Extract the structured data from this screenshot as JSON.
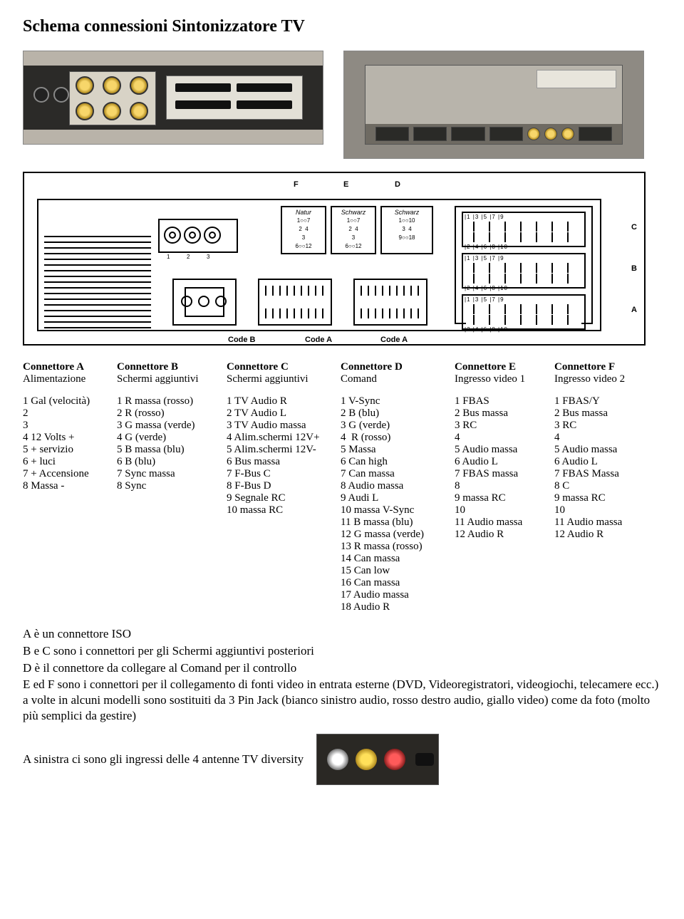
{
  "title": "Schema connessioni Sintonizzatore TV",
  "diagram": {
    "top": {
      "f": "F",
      "e": "E",
      "d": "D"
    },
    "side": {
      "c": "C",
      "b": "B",
      "a": "A"
    },
    "fedbox": {
      "f": {
        "tt": "Natur",
        "pins": "1○○7\n2  4\n3\n6○○12"
      },
      "e": {
        "tt": "Schwarz",
        "pins": "1○○7\n2  4\n3\n6○○12"
      },
      "d": {
        "tt": "Schwarz",
        "pins": "1○○10\n3  4\n9○○18"
      }
    },
    "bottom": {
      "cb": "Code B",
      "ca": "Code A",
      "ca2": "Code A"
    },
    "leftjack_labels": {
      "l1": "1",
      "l2": "2",
      "l3": "3"
    },
    "abc_nums_top": "|1 |3 |5 |7 |9",
    "abc_nums_bot": "|2 |4 |6 |8 |10"
  },
  "columns": [
    {
      "cls": "cA",
      "head": "Connettore A",
      "sub": "Alimentazione",
      "rows": [
        "1 Gal (velocità)",
        "2",
        "3",
        "4 12 Volts +",
        "5 + servizio",
        "6 + luci",
        "7 + Accensione",
        "8 Massa -"
      ]
    },
    {
      "cls": "cB",
      "head": "Connettore B",
      "sub": "Schermi aggiuntivi",
      "rows": [
        "1 R massa (rosso)",
        "2 R (rosso)",
        "3 G massa (verde)",
        "4 G (verde)",
        "5 B massa (blu)",
        "6 B (blu)",
        "7 Sync massa",
        "8 Sync"
      ]
    },
    {
      "cls": "cC",
      "head": "Connettore C",
      "sub": "Schermi aggiuntivi",
      "rows": [
        "1 TV Audio R",
        "2 TV Audio L",
        "3 TV Audio massa",
        "4 Alim.schermi 12V+",
        "5 Alim.schermi 12V-",
        "6 Bus massa",
        "7 F-Bus C",
        "8 F-Bus D",
        "9 Segnale RC",
        "10 massa RC"
      ]
    },
    {
      "cls": "cD",
      "head": "Connettore D",
      "sub": "Comand",
      "rows": [
        "1 V-Sync",
        "2 B (blu)",
        "3 G (verde)",
        "4  R (rosso)",
        "5 Massa",
        "6 Can high",
        "7 Can massa",
        "8 Audio massa",
        "9 Audi L",
        "10 massa V-Sync",
        "11 B massa (blu)",
        "12 G massa (verde)",
        "13 R massa (rosso)",
        "14 Can massa",
        "15 Can low",
        "16 Can massa",
        "17 Audio massa",
        "18 Audio R"
      ]
    },
    {
      "cls": "cE",
      "head": "Connettore E",
      "sub": "Ingresso video 1",
      "rows": [
        "1 FBAS",
        "2 Bus massa",
        "3 RC",
        "4",
        "5 Audio massa",
        "6 Audio L",
        "7 FBAS massa",
        "8",
        "9 massa RC",
        "10",
        "11 Audio massa",
        "12 Audio R"
      ]
    },
    {
      "cls": "cF",
      "head": "Connettore F",
      "sub": "Ingresso video 2",
      "rows": [
        "1 FBAS/Y",
        "2 Bus massa",
        "3 RC",
        "4",
        "5 Audio massa",
        "6 Audio L",
        "7 FBAS Massa",
        "8 C",
        "9 massa RC",
        "10",
        "11 Audio massa",
        "12 Audio R"
      ]
    }
  ],
  "notes": [
    "A è un connettore ISO",
    "B e C sono i connettori per gli Schermi aggiuntivi posteriori",
    "D è il connettore da collegare al Comand per il controllo",
    "E ed F sono i connettori per il collegamento di fonti video in entrata esterne (DVD, Videoregistratori, videogiochi, telecamere ecc.) a volte in alcuni modelli sono sostituiti da 3 Pin Jack (bianco sinistro audio, rosso destro audio, giallo video) come da foto (molto più semplici da gestire)"
  ],
  "last_line": "A sinistra ci sono gli ingressi delle 4 antenne TV diversity"
}
